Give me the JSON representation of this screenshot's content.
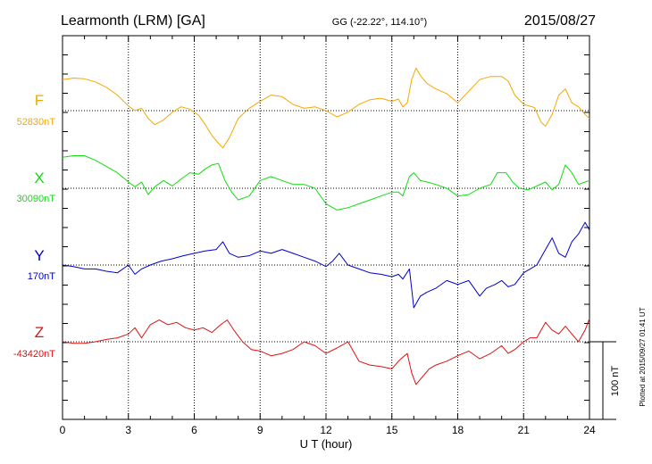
{
  "header": {
    "station": "Learmonth (LRM)  [GA]",
    "coords": "GG (-22.22°, 114.10°)",
    "date": "2015/08/27"
  },
  "footer": {
    "plotted": "Plotted at 2015/09/27 01:41 UT"
  },
  "scale_bar": {
    "label": "100 nT",
    "value_nT": 100
  },
  "colors": {
    "F": "#f5a800",
    "X": "#10dc10",
    "Y": "#0000cc",
    "Z": "#e01010"
  },
  "chart_data": {
    "type": "line",
    "title": "",
    "xlabel": "U T (hour)",
    "xlim": [
      0,
      24
    ],
    "x_ticks": [
      "0",
      "3",
      "6",
      "9",
      "12",
      "15",
      "18",
      "21",
      "24"
    ],
    "grid": true,
    "series": [
      {
        "name": "F",
        "baseline_label": "52830nT",
        "baseline_nT": 52830,
        "color": "#f5a800",
        "x": [
          0,
          0.5,
          1,
          1.5,
          2,
          2.5,
          3,
          3.3,
          3.6,
          3.9,
          4.2,
          4.6,
          5,
          5.4,
          5.8,
          6.2,
          6.5,
          6.8,
          7.1,
          7.3,
          7.6,
          8,
          8.5,
          9,
          9.5,
          10,
          10.5,
          11,
          11.5,
          12,
          12.5,
          13,
          13.5,
          14,
          14.5,
          15,
          15.3,
          15.5,
          15.7,
          15.9,
          16.1,
          16.3,
          16.6,
          17,
          17.5,
          18,
          18.5,
          19,
          19.5,
          20,
          20.3,
          20.6,
          21,
          21.5,
          21.8,
          22,
          22.3,
          22.6,
          22.9,
          23.2,
          23.5,
          23.8,
          24
        ],
        "values": [
          40,
          42,
          41,
          37,
          30,
          20,
          6,
          0,
          3,
          -10,
          -18,
          -12,
          -2,
          5,
          2,
          -6,
          -18,
          -32,
          -42,
          -48,
          -35,
          -10,
          3,
          12,
          20,
          18,
          8,
          3,
          5,
          0,
          -8,
          -2,
          8,
          14,
          16,
          12,
          15,
          5,
          10,
          40,
          55,
          45,
          35,
          28,
          22,
          10,
          25,
          40,
          44,
          44,
          38,
          20,
          8,
          4,
          -15,
          -20,
          -5,
          20,
          28,
          10,
          5,
          -5,
          -10
        ]
      },
      {
        "name": "X",
        "baseline_label": "30090nT",
        "baseline_nT": 30090,
        "color": "#10dc10",
        "x": [
          0,
          0.5,
          1,
          1.5,
          2,
          2.5,
          3,
          3.3,
          3.6,
          3.9,
          4.2,
          4.6,
          5,
          5.4,
          5.8,
          6.2,
          6.5,
          6.8,
          7.1,
          7.4,
          7.7,
          8,
          8.5,
          9,
          9.5,
          10,
          10.5,
          11,
          11.5,
          12,
          12.5,
          13,
          13.5,
          14,
          14.5,
          15,
          15.3,
          15.5,
          15.8,
          16,
          16.3,
          16.6,
          17,
          17.5,
          18,
          18.5,
          19,
          19.5,
          19.8,
          20.2,
          20.5,
          20.8,
          21.2,
          21.6,
          22,
          22.3,
          22.6,
          22.9,
          23.2,
          23.5,
          23.8,
          24
        ],
        "values": [
          40,
          42,
          42,
          36,
          28,
          20,
          8,
          2,
          8,
          -8,
          2,
          10,
          3,
          12,
          20,
          18,
          25,
          30,
          32,
          10,
          -5,
          -15,
          -10,
          10,
          15,
          10,
          5,
          5,
          0,
          -20,
          -28,
          -25,
          -20,
          -15,
          -10,
          -5,
          -5,
          -10,
          15,
          20,
          10,
          8,
          5,
          0,
          -10,
          -8,
          0,
          5,
          20,
          20,
          8,
          0,
          -2,
          3,
          8,
          -2,
          5,
          30,
          20,
          5,
          8,
          10
        ]
      },
      {
        "name": "Y",
        "baseline_label": "170nT",
        "baseline_nT": 170,
        "color": "#0000cc",
        "x": [
          0,
          0.5,
          1,
          1.5,
          2,
          2.5,
          3,
          3.3,
          3.6,
          4,
          4.5,
          5,
          5.5,
          6,
          6.5,
          7,
          7.3,
          7.6,
          8,
          8.5,
          9,
          9.5,
          10,
          10.5,
          11,
          11.5,
          12,
          12.3,
          12.6,
          13,
          13.5,
          14,
          14.5,
          15,
          15.3,
          15.5,
          15.8,
          16,
          16.3,
          16.6,
          17,
          17.5,
          18,
          18.5,
          19,
          19.3,
          19.7,
          20,
          20.3,
          20.6,
          21,
          21.3,
          21.6,
          22,
          22.3,
          22.6,
          22.9,
          23.2,
          23.5,
          23.8,
          24
        ],
        "values": [
          0,
          -2,
          -5,
          -5,
          -8,
          -10,
          0,
          -12,
          -5,
          0,
          5,
          8,
          12,
          15,
          18,
          20,
          30,
          15,
          10,
          12,
          18,
          15,
          20,
          15,
          10,
          5,
          -2,
          5,
          15,
          0,
          -5,
          -10,
          -12,
          -15,
          -12,
          -18,
          -5,
          -55,
          -40,
          -35,
          -30,
          -20,
          -25,
          -20,
          -40,
          -30,
          -25,
          -20,
          -28,
          -25,
          -10,
          -5,
          0,
          20,
          35,
          15,
          10,
          30,
          40,
          55,
          45
        ]
      },
      {
        "name": "Z",
        "baseline_label": "-43420nT",
        "baseline_nT": -43420,
        "color": "#e01010",
        "x": [
          0,
          0.5,
          1,
          1.5,
          2,
          2.5,
          3,
          3.3,
          3.6,
          4,
          4.4,
          4.8,
          5.2,
          5.6,
          6,
          6.4,
          6.8,
          7.2,
          7.5,
          7.8,
          8.2,
          8.6,
          9,
          9.5,
          10,
          10.5,
          11,
          11.5,
          12,
          12.5,
          13,
          13.5,
          14,
          14.5,
          15,
          15.3,
          15.5,
          15.7,
          15.9,
          16.1,
          16.4,
          16.7,
          17,
          17.5,
          18,
          18.5,
          19,
          19.5,
          20,
          20.3,
          20.6,
          21,
          21.3,
          21.6,
          22,
          22.3,
          22.6,
          22.9,
          23.2,
          23.5,
          23.8,
          24
        ],
        "values": [
          0,
          -2,
          -2,
          0,
          3,
          5,
          10,
          18,
          5,
          22,
          28,
          22,
          25,
          18,
          15,
          18,
          12,
          22,
          28,
          15,
          0,
          -10,
          -12,
          -18,
          -15,
          -10,
          0,
          -5,
          -15,
          -8,
          0,
          -25,
          -30,
          -32,
          -35,
          -25,
          -20,
          -15,
          -40,
          -55,
          -45,
          -35,
          -30,
          -25,
          -18,
          -12,
          -22,
          -15,
          -5,
          -15,
          -10,
          0,
          5,
          5,
          25,
          15,
          10,
          20,
          10,
          0,
          15,
          30
        ]
      }
    ]
  }
}
